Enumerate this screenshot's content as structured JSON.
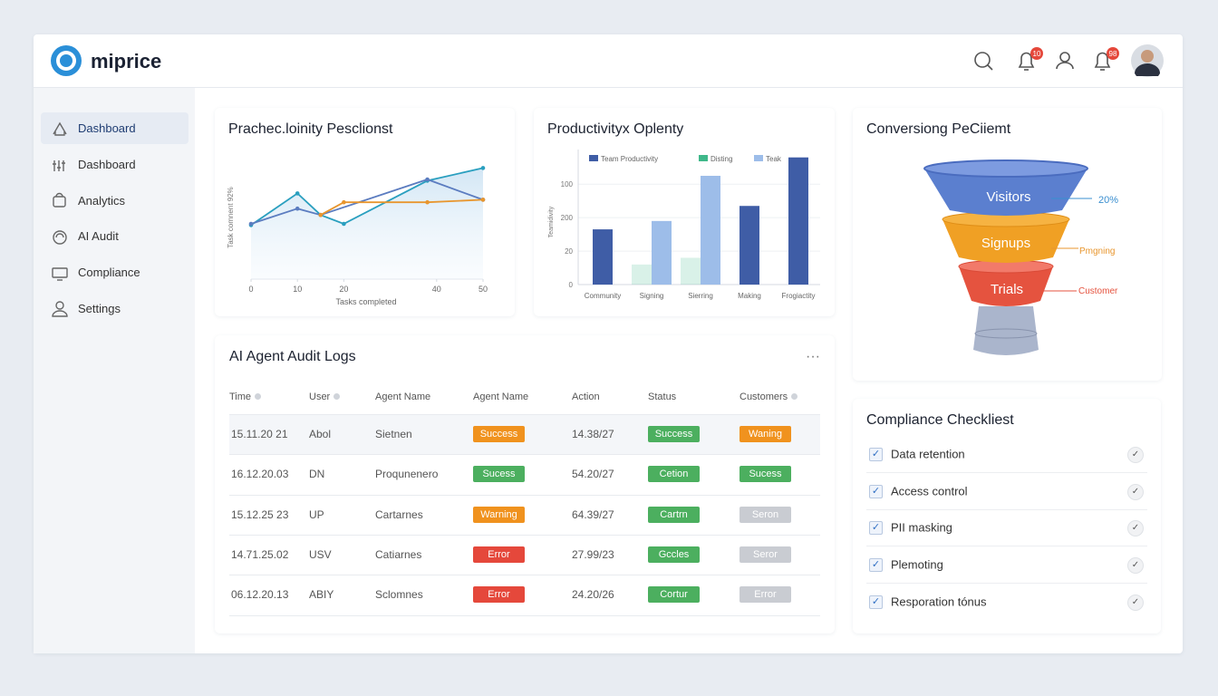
{
  "header": {
    "brand": "miprice",
    "notification_badges": [
      "10",
      "98"
    ]
  },
  "sidebar": {
    "items": [
      "Dashboard",
      "Dashboard",
      "Analytics",
      "AI Audit",
      "Compliance",
      "Settings"
    ],
    "active": 0
  },
  "line_chart": {
    "type": "line",
    "title": "Prachec.loinity Pesclionst",
    "x_label": "Tasks completed",
    "y_label": "Task comnent 92%",
    "xlim": [
      0,
      50
    ],
    "xticks": [
      0,
      10,
      20,
      40,
      50
    ],
    "ylim": [
      0,
      100
    ],
    "series": [
      {
        "color": "#2a9fbf",
        "area": true,
        "x": [
          0,
          10,
          15,
          20,
          38,
          50
        ],
        "values": [
          44,
          69,
          52,
          45,
          79,
          89
        ]
      },
      {
        "color": "#5b7cc0",
        "x": [
          0,
          10,
          15,
          38,
          50
        ],
        "values": [
          45,
          57,
          52,
          80,
          64
        ]
      },
      {
        "color": "#e8962e",
        "x": [
          15,
          20,
          38,
          50
        ],
        "values": [
          52,
          62,
          62,
          64
        ]
      }
    ]
  },
  "bar_chart": {
    "type": "bar",
    "title": "Productivityx Oplenty",
    "y_label": "Teamidivity",
    "ylim": [
      0,
      78
    ],
    "yticks": [
      0,
      20,
      {
        "value": 40,
        "label": "200"
      },
      {
        "value": 60,
        "label": "100"
      }
    ],
    "categories": [
      "Community",
      "Signing",
      "Sierring",
      "Making",
      "Frogiactity"
    ],
    "series": [
      {
        "name": "Team Productivity",
        "color": "#3f5da6",
        "values": [
          33,
          null,
          null,
          47,
          76
        ]
      },
      {
        "name": "Disting",
        "color": "#3fb88a",
        "opacity": 0.2,
        "values": [
          null,
          12,
          16,
          null,
          null
        ]
      },
      {
        "name": "Teak",
        "color": "#9dbde9",
        "values": [
          null,
          38,
          65,
          null,
          null
        ]
      }
    ]
  },
  "funnel": {
    "title": "Conversiong PeCiiemt",
    "stages": [
      "Visitors",
      "Signups",
      "Trials"
    ],
    "side_labels": [
      "20%",
      "Pmgning",
      "Customer"
    ]
  },
  "audit_logs": {
    "title": "AI Agent Audit Logs",
    "columns": [
      "Time",
      "User",
      "Agent Name",
      "Agent Name",
      "Action",
      "Status",
      "Customers"
    ],
    "rows": [
      [
        "15.11.20 21",
        "Abol",
        "Sietnen",
        {
          "text": "Success",
          "color": "#f0921e"
        },
        "14.38/27",
        {
          "text": "Success",
          "color": "#4caf5f"
        },
        {
          "text": "Waning",
          "color": "#f0921e"
        }
      ],
      [
        "16.12.20.03",
        "DN",
        "Proqunenero",
        {
          "text": "Sucess",
          "color": "#4caf5f"
        },
        "54.20/27",
        {
          "text": "Cetion",
          "color": "#4caf5f"
        },
        {
          "text": "Sucess",
          "color": "#4caf5f"
        }
      ],
      [
        "15.12.25 23",
        "UP",
        "Cartarnes",
        {
          "text": "Warning",
          "color": "#f0921e"
        },
        "64.39/27",
        {
          "text": "Cartrn",
          "color": "#4caf5f"
        },
        {
          "text": "Seron",
          "color": "#c9ccd2"
        }
      ],
      [
        "14.71.25.02",
        "USV",
        "Catiarnes",
        {
          "text": "Error",
          "color": "#e5483b"
        },
        "27.99/23",
        {
          "text": "Gccles",
          "color": "#4caf5f"
        },
        {
          "text": "Seror",
          "color": "#c9ccd2"
        }
      ],
      [
        "06.12.20.13",
        "ABIY",
        "Sclomnes",
        {
          "text": "Error",
          "color": "#e5483b"
        },
        "24.20/26",
        {
          "text": "Cortur",
          "color": "#4caf5f"
        },
        {
          "text": "Error",
          "color": "#c9ccd2"
        }
      ]
    ]
  },
  "checklist": {
    "title": "Compliance Checkliest",
    "items": [
      "Data retention",
      "Access control",
      "PII masking",
      "Plemoting",
      "Resporation tónus"
    ]
  }
}
